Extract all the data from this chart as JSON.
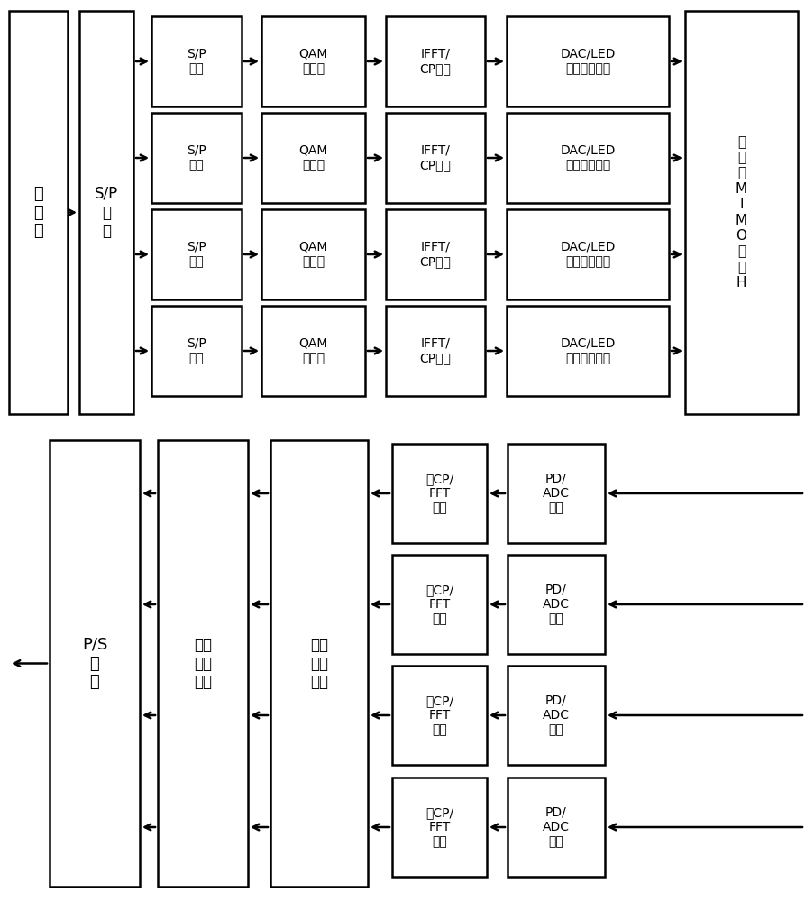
{
  "bg_color": "#ffffff",
  "line_color": "#000000",
  "text_color": "#000000",
  "lw": 1.8,
  "top": {
    "src_label": "信\n号\n源",
    "sp_main_label": "S/P\n单\n元",
    "row_sp_label": "S/P\n单元",
    "row_qam_label": "QAM\n调制器",
    "row_ifft_label": "IFFT/\nCP单元",
    "row_dac_label": "DAC/LED\n直流偏置单元",
    "ch_label": "可\n见\n光\nM\nI\nM\nO\n信\n道\nH"
  },
  "bottom": {
    "fft_label": "去CP/\nFFT\n单元",
    "pd_label": "PD/\nADC\n单元",
    "ce_label": "信道\n估计\n单元",
    "dm_label": "信号\n解调\n单元",
    "ps_label": "P/S\n单\n元"
  }
}
